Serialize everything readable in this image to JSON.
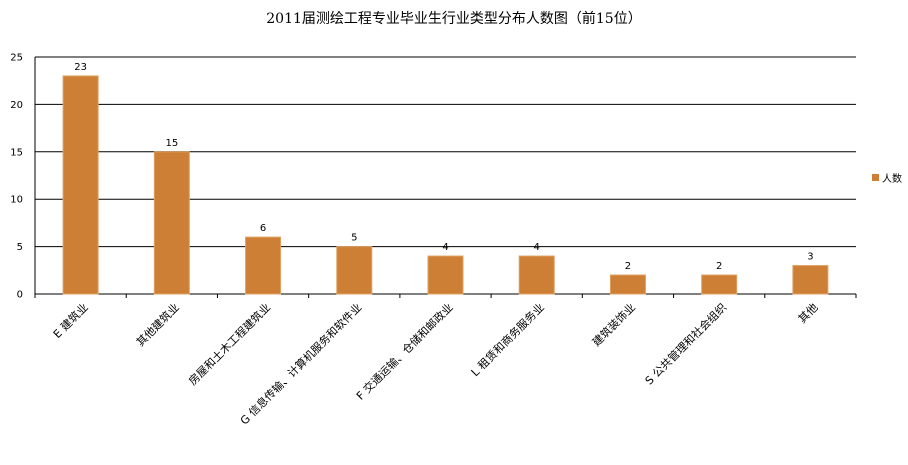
{
  "chart_data": {
    "type": "bar",
    "title": "2011届测绘工程专业毕业生行业类型分布人数图（前15位）",
    "categories": [
      "E 建筑业",
      "其他建筑业",
      "房屋和土木工程建筑业",
      "G 信息传输、计算机服务和软件业",
      "F 交通运输、仓储和邮政业",
      "L 租赁和商务服务业",
      "建筑装饰业",
      "S 公共管理和社会组织",
      "其他"
    ],
    "series": [
      {
        "name": "人数",
        "values": [
          23,
          15,
          6,
          5,
          4,
          4,
          2,
          2,
          3
        ]
      }
    ],
    "data_labels": [
      "23",
      "15",
      "6",
      "5",
      "4",
      "4",
      "2",
      "2",
      "3"
    ],
    "yticks": [
      "0",
      "5",
      "10",
      "15",
      "20",
      "25"
    ],
    "ylim": [
      0,
      25
    ],
    "grid": true,
    "legend_position": "right",
    "colors": {
      "bar": "#cd7f35",
      "bar_edge": "#e0a060",
      "grid": "#000000",
      "axis": "#000000"
    }
  }
}
